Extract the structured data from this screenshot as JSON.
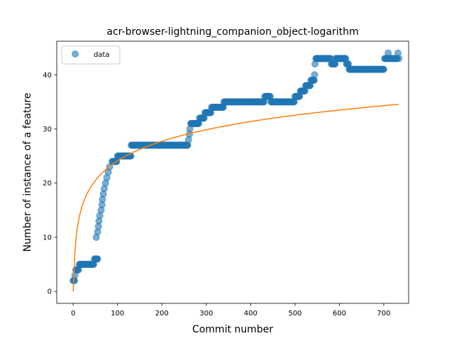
{
  "chart_data": {
    "type": "scatter",
    "title": "acr-browser-lightning_companion_object-logarithm",
    "xlabel": "Commit number",
    "ylabel": "Number of instance of a feature",
    "xlim": [
      -37,
      756
    ],
    "ylim": [
      -2.2,
      46.2
    ],
    "xticks": [
      0,
      100,
      200,
      300,
      400,
      500,
      600,
      700
    ],
    "yticks": [
      0,
      10,
      20,
      30,
      40
    ],
    "grid": false,
    "legend": {
      "placement": "top-left",
      "entries": [
        "data"
      ]
    },
    "colors": {
      "points": "#1f77b4",
      "fit": "#ff7f0e"
    },
    "series": [
      {
        "name": "data",
        "kind": "scatter",
        "steps": [
          [
            0,
            2
          ],
          [
            3,
            2
          ],
          [
            4,
            3
          ],
          [
            6,
            4
          ],
          [
            12,
            4
          ],
          [
            14,
            5
          ],
          [
            46,
            5
          ],
          [
            48,
            6
          ],
          [
            55,
            6
          ],
          [
            52,
            10
          ],
          [
            55,
            11
          ],
          [
            57,
            12
          ],
          [
            58,
            13
          ],
          [
            60,
            14
          ],
          [
            63,
            15
          ],
          [
            65,
            16
          ],
          [
            66,
            17
          ],
          [
            68,
            18
          ],
          [
            70,
            19
          ],
          [
            73,
            20
          ],
          [
            76,
            21
          ],
          [
            79,
            22
          ],
          [
            82,
            23
          ],
          [
            88,
            24
          ],
          [
            98,
            24
          ],
          [
            100,
            25
          ],
          [
            130,
            25
          ],
          [
            131,
            27
          ],
          [
            258,
            27
          ],
          [
            260,
            28
          ],
          [
            262,
            29
          ],
          [
            263,
            30
          ],
          [
            265,
            31
          ],
          [
            283,
            31
          ],
          [
            285,
            32
          ],
          [
            295,
            32
          ],
          [
            297,
            33
          ],
          [
            310,
            33
          ],
          [
            312,
            34
          ],
          [
            338,
            34
          ],
          [
            340,
            35
          ],
          [
            430,
            35
          ],
          [
            432,
            36
          ],
          [
            444,
            36
          ],
          [
            446,
            35
          ],
          [
            498,
            35
          ],
          [
            500,
            36
          ],
          [
            510,
            36
          ],
          [
            512,
            37
          ],
          [
            522,
            37
          ],
          [
            524,
            38
          ],
          [
            534,
            38
          ],
          [
            536,
            39
          ],
          [
            543,
            39
          ],
          [
            544,
            40
          ],
          [
            545,
            42
          ],
          [
            547,
            43
          ],
          [
            580,
            43
          ],
          [
            582,
            42
          ],
          [
            590,
            42
          ],
          [
            592,
            43
          ],
          [
            614,
            43
          ],
          [
            616,
            42
          ],
          [
            620,
            42
          ],
          [
            622,
            41
          ],
          [
            700,
            41
          ],
          [
            702,
            43
          ],
          [
            708,
            43
          ],
          [
            710,
            44
          ],
          [
            712,
            43
          ],
          [
            730,
            43
          ],
          [
            732,
            44
          ],
          [
            734,
            43
          ]
        ]
      },
      {
        "kind": "line",
        "model": "logarithmic",
        "a": 5.235,
        "b": 3.587,
        "x_range": [
          0,
          734
        ]
      }
    ]
  }
}
